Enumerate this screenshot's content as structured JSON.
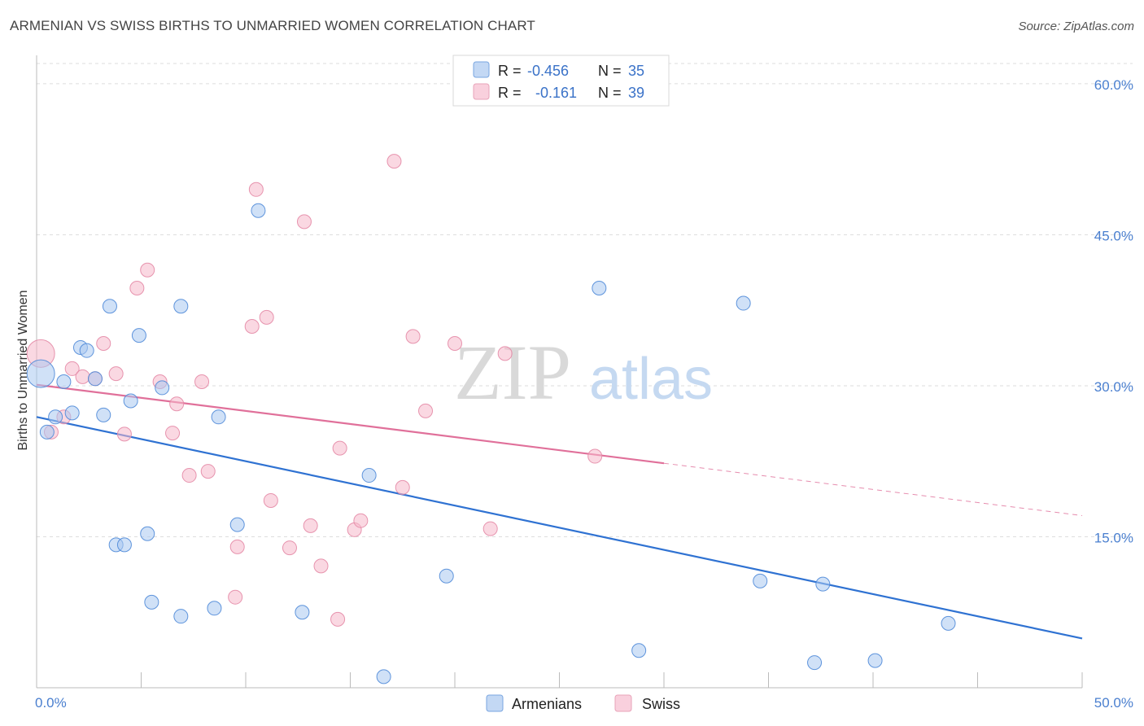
{
  "header": {
    "title": "ARMENIAN VS SWISS BIRTHS TO UNMARRIED WOMEN CORRELATION CHART",
    "source": "Source: ZipAtlas.com"
  },
  "watermark": {
    "zip": "ZIP",
    "atlas": "atlas"
  },
  "legend": {
    "rows": [
      {
        "r_label": "R =",
        "r_value": "-0.456",
        "n_label": "N =",
        "n_value": "35",
        "color": "#aac8f0"
      },
      {
        "r_label": "R =",
        "r_value": "-0.161",
        "n_label": "N =",
        "n_value": "39",
        "color": "#f5b8cb"
      }
    ]
  },
  "bottom_legend": {
    "items": [
      {
        "label": "Armenians",
        "color": "#aac8f0"
      },
      {
        "label": "Swiss",
        "color": "#f5b8cb"
      }
    ]
  },
  "chart_data": {
    "type": "scatter",
    "title": "ARMENIAN VS SWISS BIRTHS TO UNMARRIED WOMEN CORRELATION CHART",
    "xlabel": "",
    "ylabel": "Births to Unmarried Women",
    "xlim": [
      0,
      50
    ],
    "ylim": [
      0,
      62.5
    ],
    "x_tick_labels": [
      "0.0%",
      "50.0%"
    ],
    "y_ticks": [
      15,
      30,
      45,
      60
    ],
    "y_tick_labels": [
      "15.0%",
      "30.0%",
      "45.0%",
      "60.0%"
    ],
    "grid": true,
    "legend_position": "top-center",
    "series": [
      {
        "name": "Armenians",
        "color": "#4f8ad8",
        "fill": "#aac8f0",
        "line_color": "#2f72d2",
        "trend": {
          "x": [
            0,
            50
          ],
          "y": [
            26.9,
            4.9
          ],
          "dashed_from": null
        },
        "points": [
          [
            0.2,
            31.2
          ],
          [
            0.5,
            25.4
          ],
          [
            0.9,
            26.9
          ],
          [
            1.3,
            30.4
          ],
          [
            1.7,
            27.3
          ],
          [
            2.1,
            33.8
          ],
          [
            2.4,
            33.5
          ],
          [
            2.8,
            30.7
          ],
          [
            3.2,
            27.1
          ],
          [
            3.5,
            37.9
          ],
          [
            3.8,
            14.2
          ],
          [
            4.2,
            14.2
          ],
          [
            4.5,
            28.5
          ],
          [
            4.9,
            35.0
          ],
          [
            5.3,
            15.3
          ],
          [
            5.5,
            8.5
          ],
          [
            6.0,
            29.8
          ],
          [
            6.9,
            37.9
          ],
          [
            6.9,
            7.1
          ],
          [
            8.5,
            7.9
          ],
          [
            8.7,
            26.9
          ],
          [
            9.6,
            16.2
          ],
          [
            10.6,
            47.4
          ],
          [
            12.7,
            7.5
          ],
          [
            15.9,
            21.1
          ],
          [
            16.6,
            1.1
          ],
          [
            19.6,
            11.1
          ],
          [
            26.9,
            39.7
          ],
          [
            28.8,
            3.7
          ],
          [
            33.8,
            38.2
          ],
          [
            34.6,
            10.6
          ],
          [
            37.2,
            2.5
          ],
          [
            37.6,
            10.3
          ],
          [
            40.1,
            2.7
          ],
          [
            43.6,
            6.4
          ]
        ]
      },
      {
        "name": "Swiss",
        "color": "#e48aa6",
        "fill": "#f5b8cb",
        "line_color": "#e0709a",
        "trend": {
          "x": [
            0,
            50
          ],
          "y": [
            30.1,
            17.1
          ],
          "solid_until": 30
        },
        "points": [
          [
            0.2,
            33.2
          ],
          [
            0.7,
            25.4
          ],
          [
            1.3,
            26.9
          ],
          [
            1.7,
            31.7
          ],
          [
            2.2,
            30.9
          ],
          [
            2.8,
            30.7
          ],
          [
            3.2,
            34.2
          ],
          [
            3.8,
            31.2
          ],
          [
            4.2,
            25.2
          ],
          [
            4.8,
            39.7
          ],
          [
            5.3,
            41.5
          ],
          [
            5.9,
            30.4
          ],
          [
            6.5,
            25.3
          ],
          [
            6.7,
            28.2
          ],
          [
            7.3,
            21.1
          ],
          [
            7.9,
            30.4
          ],
          [
            8.2,
            21.5
          ],
          [
            9.6,
            14.0
          ],
          [
            9.5,
            9.0
          ],
          [
            10.3,
            35.9
          ],
          [
            10.5,
            49.5
          ],
          [
            11.0,
            36.8
          ],
          [
            11.2,
            18.6
          ],
          [
            12.1,
            13.9
          ],
          [
            12.8,
            46.3
          ],
          [
            13.1,
            16.1
          ],
          [
            13.6,
            12.1
          ],
          [
            14.4,
            6.8
          ],
          [
            14.5,
            23.8
          ],
          [
            15.2,
            15.7
          ],
          [
            15.5,
            16.6
          ],
          [
            17.1,
            52.3
          ],
          [
            17.5,
            19.9
          ],
          [
            18.6,
            27.5
          ],
          [
            18.0,
            34.9
          ],
          [
            20.0,
            34.2
          ],
          [
            21.7,
            15.8
          ],
          [
            22.4,
            33.2
          ],
          [
            26.7,
            23.0
          ]
        ]
      }
    ]
  }
}
